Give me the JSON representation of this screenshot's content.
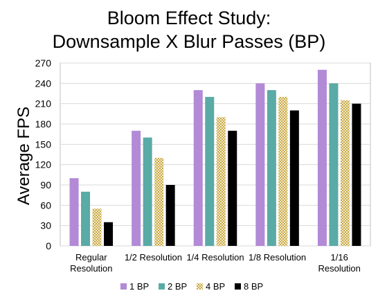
{
  "chart_data": {
    "type": "bar",
    "title_lines": [
      "Bloom Effect Study:",
      "Downsample X Blur Passes (BP)"
    ],
    "ylabel": "Average FPS",
    "xlabel": "",
    "ylim": [
      0,
      270
    ],
    "yticks": [
      0,
      30,
      60,
      90,
      120,
      150,
      180,
      210,
      240,
      270
    ],
    "grid": true,
    "legend_position": "bottom",
    "categories": [
      [
        "Regular",
        "Resolution"
      ],
      [
        "1/2 Resolution"
      ],
      [
        "1/4 Resolution"
      ],
      [
        "1/8 Resolution"
      ],
      [
        "1/16",
        "Resolution"
      ]
    ],
    "series": [
      {
        "name": "1 BP",
        "color": "#b28ad6",
        "pattern": "solid",
        "values": [
          100,
          170,
          230,
          240,
          260
        ]
      },
      {
        "name": "2 BP",
        "color": "#5aaaa6",
        "pattern": "solid",
        "values": [
          80,
          160,
          220,
          230,
          240
        ]
      },
      {
        "name": "4 BP",
        "color": "#d9c27a",
        "pattern": "checker",
        "values": [
          55,
          130,
          190,
          220,
          215
        ]
      },
      {
        "name": "8 BP",
        "color": "#000000",
        "pattern": "solid",
        "values": [
          35,
          90,
          170,
          200,
          210
        ]
      }
    ]
  }
}
